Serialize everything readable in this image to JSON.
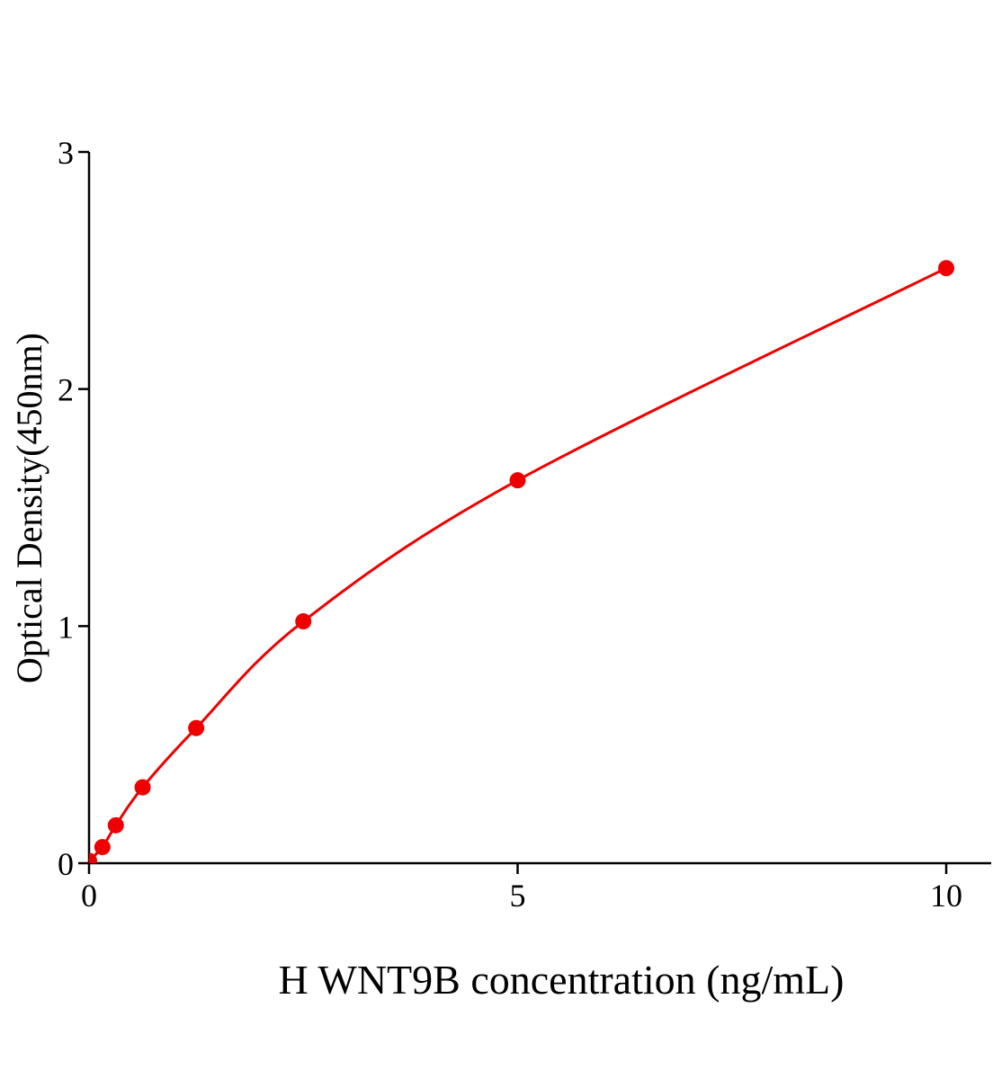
{
  "chart_data": {
    "type": "scatter",
    "title": "",
    "xlabel": "H WNT9B concentration (ng/mL)",
    "ylabel": "Optical Density(450nm)",
    "xlim": [
      0,
      10.5
    ],
    "ylim": [
      0,
      3
    ],
    "xticks": [
      0,
      5,
      10
    ],
    "yticks": [
      0,
      1,
      2,
      3
    ],
    "grid": false,
    "legend": "none",
    "color": "#ee0000",
    "fit_curve": true,
    "points": [
      {
        "x": 0,
        "y": 0.01
      },
      {
        "x": 0.156,
        "y": 0.068
      },
      {
        "x": 0.3125,
        "y": 0.16
      },
      {
        "x": 0.625,
        "y": 0.32
      },
      {
        "x": 1.25,
        "y": 0.57
      },
      {
        "x": 2.5,
        "y": 1.02
      },
      {
        "x": 5,
        "y": 1.615
      },
      {
        "x": 10,
        "y": 2.51
      }
    ]
  }
}
